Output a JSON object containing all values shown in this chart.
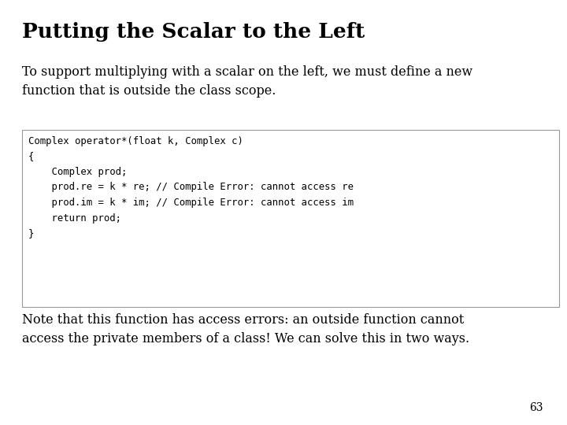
{
  "title": "Putting the Scalar to the Left",
  "body_text1": "To support multiplying with a scalar on the left, we must define a new\nfunction that is outside the class scope.",
  "code_lines": [
    "Complex operator*(float k, Complex c)",
    "{",
    "    Complex prod;",
    "    prod.re = k * re; // Compile Error: cannot access re",
    "    prod.im = k * im; // Compile Error: cannot access im",
    "    return prod;",
    "}"
  ],
  "body_text2": "Note that this function has access errors: an outside function cannot\naccess the private members of a class! We can solve this in two ways.",
  "page_number": "63",
  "bg_color": "#ffffff",
  "title_color": "#000000",
  "body_color": "#000000",
  "code_color": "#000000",
  "box_edge_color": "#999999",
  "box_face_color": "#ffffff",
  "title_fontsize": 19,
  "body_fontsize": 11.5,
  "code_fontsize": 8.8,
  "page_fontsize": 10
}
